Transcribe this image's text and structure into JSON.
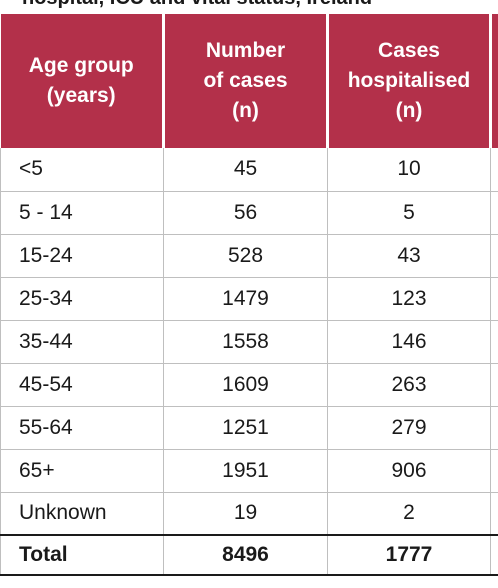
{
  "title": "hospital, ICU and vital status, Ireland",
  "table": {
    "headers": {
      "age_group": [
        "Age group",
        "(years)"
      ],
      "number_of_cases": [
        "Number",
        "of cases",
        "(n)"
      ],
      "cases_hospitalised": [
        "Cases",
        "hospitalised",
        "(n)"
      ]
    },
    "rows": [
      {
        "age_group": "<5",
        "number_of_cases": "45",
        "cases_hospitalised": "10"
      },
      {
        "age_group": "5 - 14",
        "number_of_cases": "56",
        "cases_hospitalised": "5"
      },
      {
        "age_group": "15-24",
        "number_of_cases": "528",
        "cases_hospitalised": "43"
      },
      {
        "age_group": "25-34",
        "number_of_cases": "1479",
        "cases_hospitalised": "123"
      },
      {
        "age_group": "35-44",
        "number_of_cases": "1558",
        "cases_hospitalised": "146"
      },
      {
        "age_group": "45-54",
        "number_of_cases": "1609",
        "cases_hospitalised": "263"
      },
      {
        "age_group": "55-64",
        "number_of_cases": "1251",
        "cases_hospitalised": "279"
      },
      {
        "age_group": "65+",
        "number_of_cases": "1951",
        "cases_hospitalised": "906"
      },
      {
        "age_group": "Unknown",
        "number_of_cases": "19",
        "cases_hospitalised": "2"
      }
    ],
    "total": {
      "age_group": "Total",
      "number_of_cases": "8496",
      "cases_hospitalised": "1777"
    }
  },
  "colors": {
    "header_background": "#b3304a",
    "header_text": "#ffffff",
    "grid_lines": "#bfbfbf"
  }
}
